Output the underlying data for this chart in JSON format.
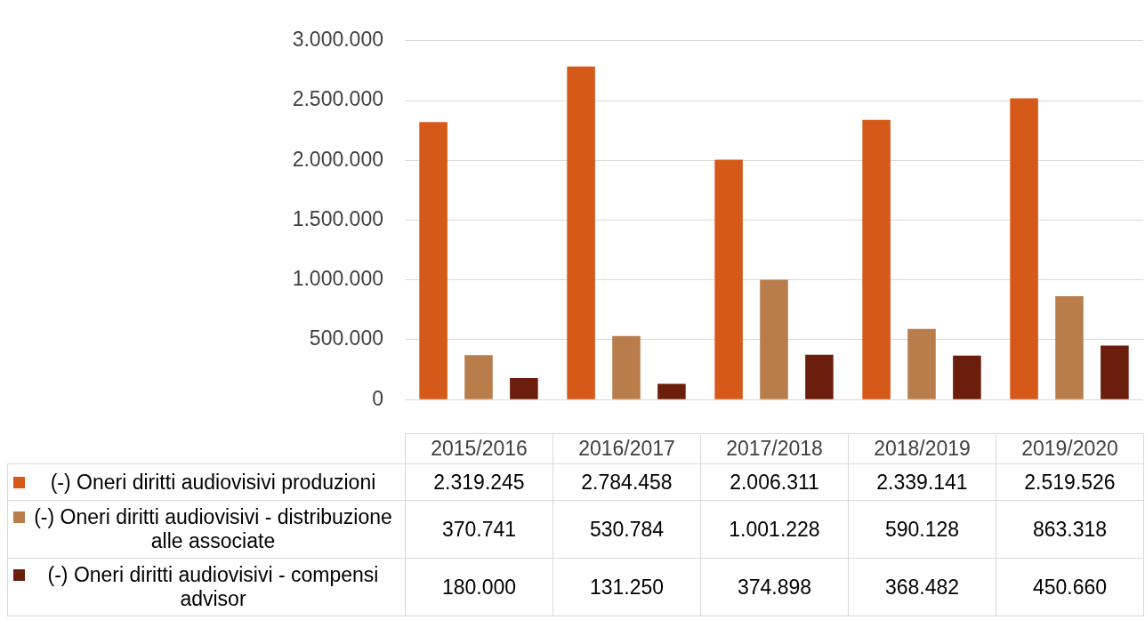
{
  "chart_data": {
    "type": "bar",
    "categories": [
      "2015/2016",
      "2016/2017",
      "2017/2018",
      "2018/2019",
      "2019/2020"
    ],
    "series": [
      {
        "name": "(-) Oneri diritti audiovisivi produzioni",
        "color": "#d55a1a",
        "values": [
          2319245,
          2784458,
          2006311,
          2339141,
          2519526
        ],
        "value_labels": [
          "2.319.245",
          "2.784.458",
          "2.006.311",
          "2.339.141",
          "2.519.526"
        ]
      },
      {
        "name": "(-) Oneri diritti audiovisivi - distribuzione alle associate",
        "color": "#b87d4b",
        "values": [
          370741,
          530784,
          1001228,
          590128,
          863318
        ],
        "value_labels": [
          "370.741",
          "530.784",
          "1.001.228",
          "590.128",
          "863.318"
        ]
      },
      {
        "name": "(-) Oneri diritti audiovisivi - compensi advisor",
        "color": "#6b1e0b",
        "values": [
          180000,
          131250,
          374898,
          368482,
          450660
        ],
        "value_labels": [
          "180.000",
          "131.250",
          "374.898",
          "368.482",
          "450.660"
        ]
      }
    ],
    "ylim": [
      0,
      3000000
    ],
    "yticks": [
      0,
      {
        "value": 500000,
        "label": "500.000"
      },
      {
        "value": 1000000,
        "label": "1.000.000"
      },
      {
        "value": 1500000,
        "label": "1.500.000"
      },
      {
        "value": 2000000,
        "label": "2.000.000"
      },
      {
        "value": 2500000,
        "label": "2.500.000"
      },
      {
        "value": 3000000,
        "label": "3.000.000"
      }
    ],
    "grid": "y",
    "legend": "bottom"
  }
}
